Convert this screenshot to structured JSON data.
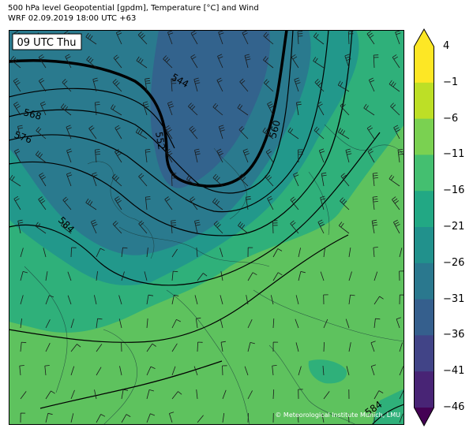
{
  "title": {
    "line1": "500 hPa level Geopotential [gpdm], Temperature [°C] and Wind",
    "line2": "WRF 02.09.2019 18:00 UTC +63"
  },
  "time_label": "09 UTC Thu",
  "credit": "© Meteorological Institute Munich, LMU",
  "contour_labels": [
    "544",
    "552",
    "560",
    "568",
    "576",
    "584",
    "584"
  ],
  "colorbar": {
    "tick_labels": [
      "4",
      "−1",
      "−6",
      "−11",
      "−16",
      "−21",
      "−26",
      "−31",
      "−36",
      "−41",
      "−46"
    ],
    "levels": [
      -46,
      -41,
      -36,
      -31,
      -26,
      -21,
      -16,
      -11,
      -6,
      -1,
      4
    ],
    "colors": [
      "#440154",
      "#482475",
      "#414487",
      "#355f8d",
      "#2a788e",
      "#21918c",
      "#22a884",
      "#44bf70",
      "#7ad151",
      "#bddf26",
      "#fde725"
    ]
  },
  "colors": {
    "map_warm": "#5ec25e",
    "map_mid": "#2fb07a",
    "map_cool": "#22988b",
    "map_cold": "#2a7a8e",
    "map_coldest": "#33638d"
  }
}
